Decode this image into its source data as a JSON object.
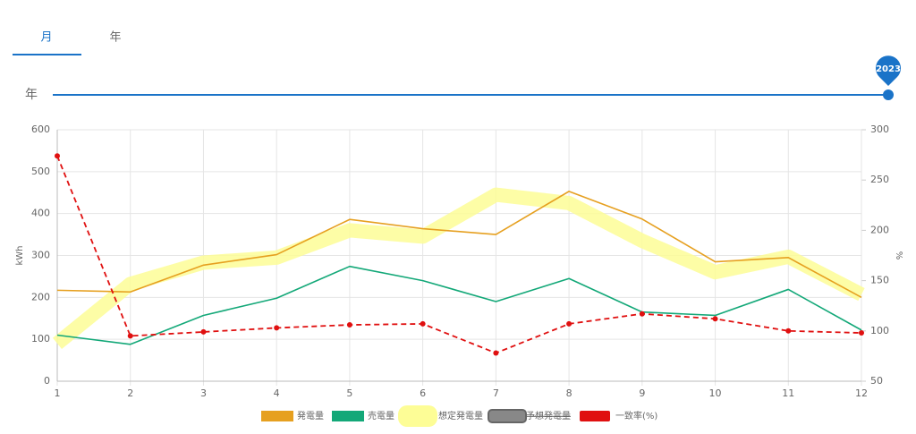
{
  "tabs": [
    {
      "label": "月",
      "active": true
    },
    {
      "label": "年",
      "active": false
    }
  ],
  "slider": {
    "label": "年",
    "value": 2023
  },
  "chart_data": {
    "type": "line",
    "categories": [
      "1",
      "2",
      "3",
      "4",
      "5",
      "6",
      "7",
      "8",
      "9",
      "10",
      "11",
      "12"
    ],
    "ylabel": "kWh",
    "y2label": "%",
    "ylim": [
      0,
      600
    ],
    "yticks": [
      0,
      100,
      200,
      300,
      400,
      500,
      600
    ],
    "y2lim": [
      50,
      300
    ],
    "y2ticks": [
      50,
      100,
      150,
      200,
      250,
      300
    ],
    "grid": true,
    "legend": "bottom",
    "series": [
      {
        "name": "発電量",
        "color": "#e6a020",
        "style": "line",
        "values": [
          217,
          213,
          277,
          302,
          386,
          364,
          350,
          453,
          387,
          285,
          295,
          200
        ]
      },
      {
        "name": "売電量",
        "color": "#13a878",
        "style": "line",
        "values": [
          110,
          88,
          157,
          198,
          274,
          240,
          190,
          245,
          165,
          157,
          219,
          122
        ]
      },
      {
        "name": "想定発電量",
        "color": "#fdfd96",
        "style": "band",
        "values": [
          90,
          232,
          283,
          295,
          360,
          345,
          445,
          425,
          335,
          260,
          297,
          207
        ]
      },
      {
        "name": "予想発電量",
        "color": "#888888",
        "style": "hidden",
        "values": [
          null,
          null,
          null,
          null,
          null,
          null,
          null,
          null,
          null,
          null,
          null,
          null
        ]
      },
      {
        "name": "一致率(%)",
        "color": "#e01010",
        "style": "dashed",
        "axis": "y2",
        "values": [
          274,
          95,
          99,
          103,
          106,
          107,
          78,
          107,
          117,
          112,
          100,
          98
        ]
      }
    ]
  }
}
